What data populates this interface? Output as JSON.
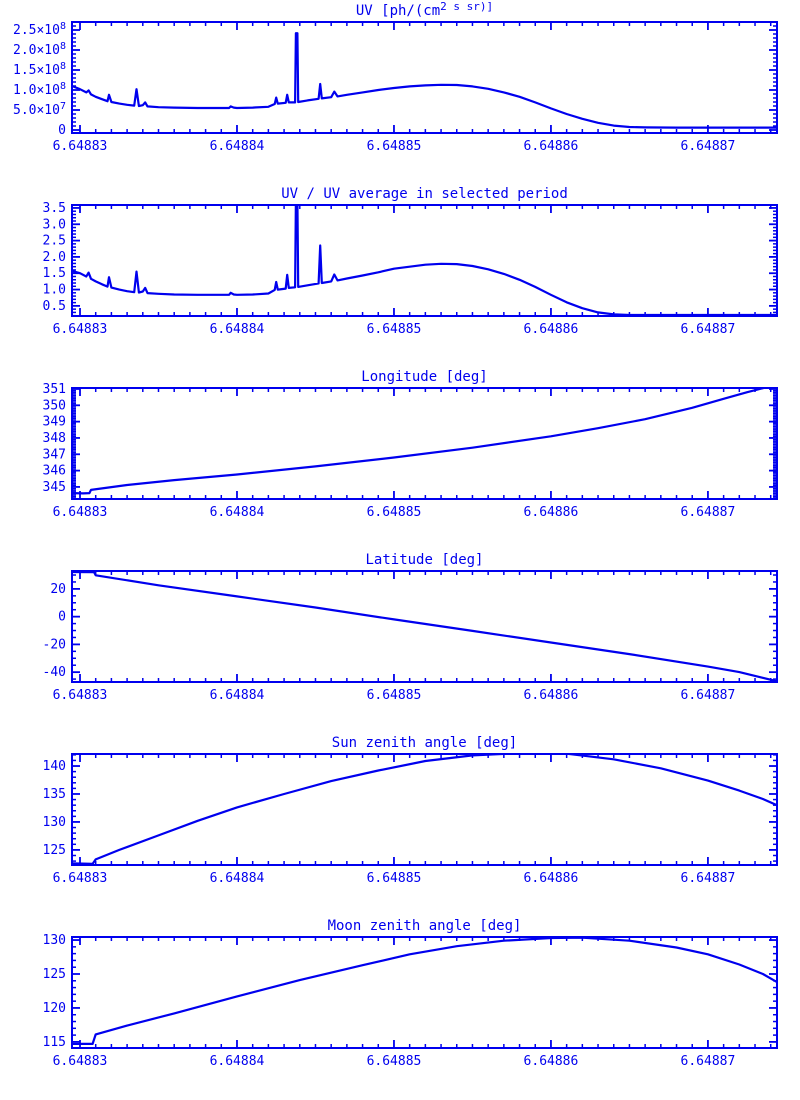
{
  "page": {
    "background": "#ffffff",
    "plot_color": "#0000ee",
    "description_note": "Six stacked IDL-style time-series panels, all blue on white"
  },
  "x_axis_shared": {
    "tick_labels": [
      "6.64883",
      "6.64884",
      "6.64885",
      "6.64886",
      "6.64887"
    ],
    "note": "series x stored as t where actual x = 6.64883 + t*1e-5"
  },
  "chart_data": [
    {
      "type": "line",
      "title": "UV [ph/(cm^2 s sr)]",
      "xlim": [
        -0.051,
        4.44
      ],
      "x_ticks": {
        "positions": [
          0,
          1,
          2,
          3,
          4
        ],
        "labels": [
          "6.64883",
          "6.64884",
          "6.64885",
          "6.64886",
          "6.64887"
        ]
      },
      "x_minor_step": 0.1,
      "ylim": [
        -0.75,
        27.0
      ],
      "y_scale_note": "y values in units of 1e7 ph/(cm^2 s sr)",
      "y_ticks": {
        "values": [
          0,
          5,
          10,
          15,
          20,
          25
        ],
        "labels": [
          "0",
          "5.0×10^7",
          "1.0×10^8",
          "1.5×10^8",
          "2.0×10^8",
          "2.5×10^8"
        ]
      },
      "y_minor_step": 1,
      "series": [
        {
          "name": "UV radiance",
          "points": [
            [
              -0.051,
              11.0
            ],
            [
              0.0,
              10.2
            ],
            [
              0.04,
              9.4
            ],
            [
              0.055,
              9.9
            ],
            [
              0.07,
              8.9
            ],
            [
              0.1,
              8.3
            ],
            [
              0.14,
              7.7
            ],
            [
              0.175,
              7.2
            ],
            [
              0.185,
              8.8
            ],
            [
              0.2,
              7.0
            ],
            [
              0.25,
              6.6
            ],
            [
              0.3,
              6.3
            ],
            [
              0.345,
              6.1
            ],
            [
              0.36,
              10.2
            ],
            [
              0.375,
              6.0
            ],
            [
              0.4,
              6.2
            ],
            [
              0.415,
              6.9
            ],
            [
              0.43,
              5.9
            ],
            [
              0.5,
              5.7
            ],
            [
              0.6,
              5.6
            ],
            [
              0.75,
              5.5
            ],
            [
              0.95,
              5.5
            ],
            [
              0.96,
              5.9
            ],
            [
              0.98,
              5.6
            ],
            [
              1.0,
              5.5
            ],
            [
              1.1,
              5.6
            ],
            [
              1.2,
              5.8
            ],
            [
              1.24,
              6.5
            ],
            [
              1.25,
              8.1
            ],
            [
              1.26,
              6.6
            ],
            [
              1.31,
              6.8
            ],
            [
              1.32,
              8.8
            ],
            [
              1.33,
              6.9
            ],
            [
              1.37,
              6.9
            ],
            [
              1.375,
              24.2
            ],
            [
              1.385,
              24.2
            ],
            [
              1.39,
              7.0
            ],
            [
              1.45,
              7.4
            ],
            [
              1.52,
              7.8
            ],
            [
              1.53,
              11.5
            ],
            [
              1.54,
              7.9
            ],
            [
              1.6,
              8.2
            ],
            [
              1.62,
              9.6
            ],
            [
              1.64,
              8.4
            ],
            [
              1.7,
              8.8
            ],
            [
              1.8,
              9.4
            ],
            [
              1.9,
              10.0
            ],
            [
              2.0,
              10.5
            ],
            [
              2.1,
              10.9
            ],
            [
              2.2,
              11.15
            ],
            [
              2.3,
              11.3
            ],
            [
              2.4,
              11.25
            ],
            [
              2.5,
              10.9
            ],
            [
              2.6,
              10.3
            ],
            [
              2.7,
              9.4
            ],
            [
              2.8,
              8.3
            ],
            [
              2.9,
              6.9
            ],
            [
              3.0,
              5.4
            ],
            [
              3.1,
              4.0
            ],
            [
              3.2,
              2.8
            ],
            [
              3.3,
              1.8
            ],
            [
              3.4,
              1.1
            ],
            [
              3.5,
              0.75
            ],
            [
              3.6,
              0.65
            ],
            [
              3.8,
              0.6
            ],
            [
              4.44,
              0.6
            ]
          ]
        }
      ]
    },
    {
      "type": "line",
      "title": "UV / UV average in selected period",
      "xlim": [
        -0.051,
        4.44
      ],
      "x_ticks": {
        "positions": [
          0,
          1,
          2,
          3,
          4
        ],
        "labels": [
          "6.64883",
          "6.64884",
          "6.64885",
          "6.64886",
          "6.64887"
        ]
      },
      "x_minor_step": 0.1,
      "ylim": [
        0.19,
        3.59
      ],
      "y_ticks": {
        "values": [
          0.5,
          1.0,
          1.5,
          2.0,
          2.5,
          3.0,
          3.5
        ],
        "labels": [
          "0.5",
          "1.0",
          "1.5",
          "2.0",
          "2.5",
          "3.0",
          "3.5"
        ]
      },
      "y_minor_step": 0.1,
      "series": [
        {
          "name": "UV / UV average",
          "points": [
            [
              -0.051,
              1.57
            ],
            [
              0.0,
              1.5
            ],
            [
              0.04,
              1.4
            ],
            [
              0.055,
              1.52
            ],
            [
              0.07,
              1.33
            ],
            [
              0.1,
              1.25
            ],
            [
              0.14,
              1.16
            ],
            [
              0.175,
              1.09
            ],
            [
              0.185,
              1.38
            ],
            [
              0.2,
              1.06
            ],
            [
              0.25,
              1.0
            ],
            [
              0.3,
              0.95
            ],
            [
              0.345,
              0.92
            ],
            [
              0.36,
              1.55
            ],
            [
              0.375,
              0.91
            ],
            [
              0.4,
              0.94
            ],
            [
              0.415,
              1.05
            ],
            [
              0.43,
              0.89
            ],
            [
              0.5,
              0.87
            ],
            [
              0.6,
              0.85
            ],
            [
              0.75,
              0.84
            ],
            [
              0.95,
              0.84
            ],
            [
              0.96,
              0.9
            ],
            [
              0.98,
              0.85
            ],
            [
              1.0,
              0.84
            ],
            [
              1.1,
              0.85
            ],
            [
              1.2,
              0.88
            ],
            [
              1.24,
              0.99
            ],
            [
              1.25,
              1.23
            ],
            [
              1.26,
              1.0
            ],
            [
              1.31,
              1.03
            ],
            [
              1.32,
              1.45
            ],
            [
              1.33,
              1.05
            ],
            [
              1.37,
              1.07
            ],
            [
              1.375,
              3.75
            ],
            [
              1.385,
              3.75
            ],
            [
              1.39,
              1.08
            ],
            [
              1.45,
              1.13
            ],
            [
              1.52,
              1.19
            ],
            [
              1.53,
              2.35
            ],
            [
              1.54,
              1.2
            ],
            [
              1.6,
              1.25
            ],
            [
              1.62,
              1.46
            ],
            [
              1.64,
              1.28
            ],
            [
              1.7,
              1.34
            ],
            [
              1.8,
              1.43
            ],
            [
              1.9,
              1.53
            ],
            [
              2.0,
              1.64
            ],
            [
              2.1,
              1.7
            ],
            [
              2.2,
              1.76
            ],
            [
              2.3,
              1.79
            ],
            [
              2.4,
              1.78
            ],
            [
              2.5,
              1.72
            ],
            [
              2.6,
              1.62
            ],
            [
              2.7,
              1.48
            ],
            [
              2.8,
              1.3
            ],
            [
              2.9,
              1.08
            ],
            [
              3.0,
              0.84
            ],
            [
              3.1,
              0.61
            ],
            [
              3.2,
              0.43
            ],
            [
              3.3,
              0.3
            ],
            [
              3.4,
              0.24
            ],
            [
              3.5,
              0.22
            ],
            [
              3.6,
              0.22
            ],
            [
              4.44,
              0.22
            ]
          ]
        }
      ]
    },
    {
      "type": "line",
      "title": "Longitude [deg]",
      "xlim": [
        -0.051,
        4.44
      ],
      "x_ticks": {
        "positions": [
          0,
          1,
          2,
          3,
          4
        ],
        "labels": [
          "6.64883",
          "6.64884",
          "6.64885",
          "6.64886",
          "6.64887"
        ]
      },
      "x_minor_step": 0.1,
      "ylim": [
        344.26,
        351.06
      ],
      "y_ticks": {
        "values": [
          345,
          346,
          347,
          348,
          349,
          350,
          351
        ],
        "labels": [
          "345",
          "346",
          "347",
          "348",
          "349",
          "350",
          "351"
        ]
      },
      "y_minor_step": 0.1,
      "series": [
        {
          "name": "Longitude",
          "points": [
            [
              -0.051,
              344.62
            ],
            [
              0.02,
              344.6
            ],
            [
              0.06,
              344.62
            ],
            [
              0.07,
              344.82
            ],
            [
              0.3,
              345.12
            ],
            [
              0.6,
              345.42
            ],
            [
              1.0,
              345.76
            ],
            [
              1.5,
              346.26
            ],
            [
              2.0,
              346.8
            ],
            [
              2.5,
              347.4
            ],
            [
              3.0,
              348.1
            ],
            [
              3.3,
              348.6
            ],
            [
              3.6,
              349.15
            ],
            [
              3.9,
              349.85
            ],
            [
              4.1,
              350.4
            ],
            [
              4.25,
              350.8
            ],
            [
              4.35,
              351.05
            ],
            [
              4.44,
              351.4
            ]
          ]
        }
      ]
    },
    {
      "type": "line",
      "title": "Latitude [deg]",
      "xlim": [
        -0.051,
        4.44
      ],
      "x_ticks": {
        "positions": [
          0,
          1,
          2,
          3,
          4
        ],
        "labels": [
          "6.64883",
          "6.64884",
          "6.64885",
          "6.64886",
          "6.64887"
        ]
      },
      "x_minor_step": 0.1,
      "ylim": [
        -47.1,
        32.9
      ],
      "y_ticks": {
        "values": [
          -40,
          -20,
          0,
          20
        ],
        "labels": [
          "-40",
          "-20",
          "0",
          "20"
        ]
      },
      "y_minor_step": 5,
      "series": [
        {
          "name": "Latitude",
          "points": [
            [
              -0.051,
              32.2
            ],
            [
              0.09,
              32.0
            ],
            [
              0.1,
              29.8
            ],
            [
              0.5,
              22.6
            ],
            [
              1.0,
              14.6
            ],
            [
              1.5,
              6.6
            ],
            [
              2.0,
              -2.0
            ],
            [
              2.5,
              -10.3
            ],
            [
              3.0,
              -18.6
            ],
            [
              3.5,
              -27.0
            ],
            [
              4.0,
              -36.0
            ],
            [
              4.2,
              -40.0
            ],
            [
              4.44,
              -46.6
            ]
          ]
        }
      ]
    },
    {
      "type": "line",
      "title": "Sun zenith angle [deg]",
      "xlim": [
        -0.051,
        4.44
      ],
      "x_ticks": {
        "positions": [
          0,
          1,
          2,
          3,
          4
        ],
        "labels": [
          "6.64883",
          "6.64884",
          "6.64885",
          "6.64886",
          "6.64887"
        ]
      },
      "x_minor_step": 0.1,
      "ylim": [
        122.3,
        142.15
      ],
      "y_ticks": {
        "values": [
          125,
          130,
          135,
          140
        ],
        "labels": [
          "125",
          "130",
          "135",
          "140"
        ]
      },
      "y_minor_step": 1,
      "series": [
        {
          "name": "Sun zenith angle",
          "points": [
            [
              -0.051,
              122.6
            ],
            [
              0.08,
              122.5
            ],
            [
              0.1,
              123.3
            ],
            [
              0.25,
              125.0
            ],
            [
              0.5,
              127.6
            ],
            [
              0.75,
              130.2
            ],
            [
              1.0,
              132.6
            ],
            [
              1.3,
              135.0
            ],
            [
              1.6,
              137.3
            ],
            [
              1.9,
              139.2
            ],
            [
              2.2,
              140.9
            ],
            [
              2.5,
              141.9
            ],
            [
              2.8,
              142.3
            ],
            [
              3.1,
              142.2
            ],
            [
              3.4,
              141.2
            ],
            [
              3.7,
              139.6
            ],
            [
              4.0,
              137.4
            ],
            [
              4.2,
              135.6
            ],
            [
              4.35,
              134.1
            ],
            [
              4.44,
              133.0
            ]
          ]
        }
      ]
    },
    {
      "type": "line",
      "title": "Moon zenith angle [deg]",
      "xlim": [
        -0.051,
        4.44
      ],
      "x_ticks": {
        "positions": [
          0,
          1,
          2,
          3,
          4
        ],
        "labels": [
          "6.64883",
          "6.64884",
          "6.64885",
          "6.64886",
          "6.64887"
        ]
      },
      "x_minor_step": 0.1,
      "ylim": [
        114.1,
        130.45
      ],
      "y_ticks": {
        "values": [
          115,
          120,
          125,
          130
        ],
        "labels": [
          "115",
          "120",
          "125",
          "130"
        ]
      },
      "y_minor_step": 1,
      "series": [
        {
          "name": "Moon zenith angle",
          "points": [
            [
              -0.051,
              114.7
            ],
            [
              0.08,
              114.7
            ],
            [
              0.1,
              116.1
            ],
            [
              0.3,
              117.4
            ],
            [
              0.6,
              119.2
            ],
            [
              1.0,
              121.7
            ],
            [
              1.4,
              124.1
            ],
            [
              1.8,
              126.3
            ],
            [
              2.1,
              127.9
            ],
            [
              2.4,
              129.1
            ],
            [
              2.7,
              129.9
            ],
            [
              3.0,
              130.3
            ],
            [
              3.2,
              130.35
            ],
            [
              3.5,
              129.9
            ],
            [
              3.8,
              128.9
            ],
            [
              4.0,
              127.9
            ],
            [
              4.2,
              126.4
            ],
            [
              4.35,
              125.0
            ],
            [
              4.44,
              123.8
            ]
          ]
        }
      ]
    }
  ]
}
